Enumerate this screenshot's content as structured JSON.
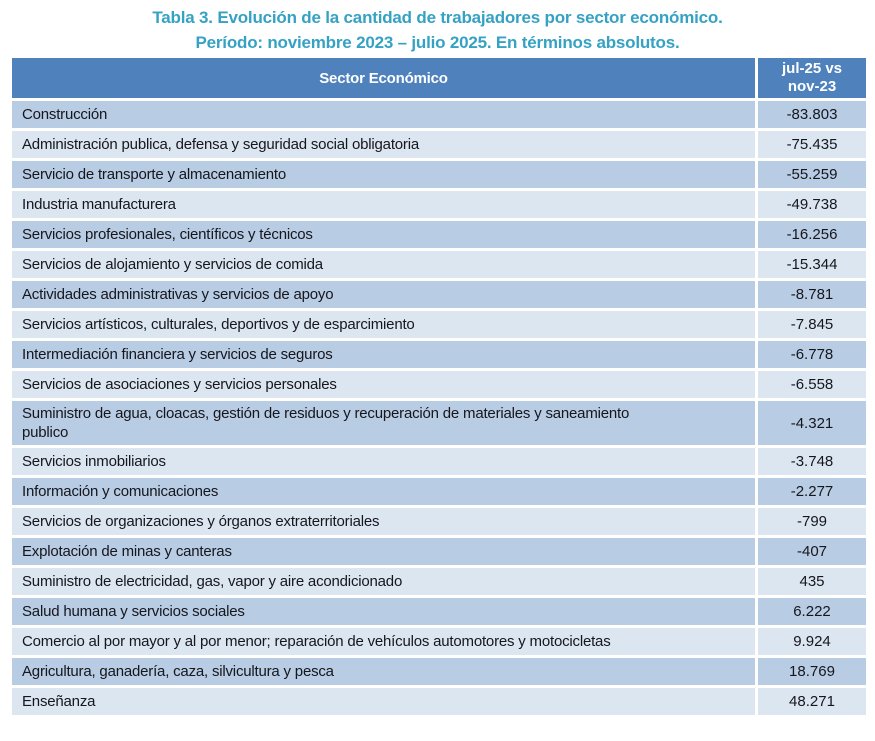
{
  "title": {
    "line1": "Tabla 3. Evolución de la cantidad de trabajadores por sector económico.",
    "line2": "Período: noviembre 2023 – julio 2025. En términos absolutos."
  },
  "colors": {
    "title_color": "#35a2c4",
    "header_bg": "#4f81bd",
    "header_text": "#ffffff",
    "row_dark": "#b8cce4",
    "row_light": "#dce6f1",
    "row_text": "#16161d"
  },
  "table": {
    "header": {
      "sector": "Sector Económico",
      "value_line1": "jul-25 vs",
      "value_line2": "nov-23"
    },
    "rows": [
      {
        "sector": "Construcción",
        "value": "-83.803"
      },
      {
        "sector": "Administración publica, defensa y seguridad social obligatoria",
        "value": "-75.435"
      },
      {
        "sector": "Servicio de transporte y almacenamiento",
        "value": "-55.259"
      },
      {
        "sector": "Industria manufacturera",
        "value": "-49.738"
      },
      {
        "sector": "Servicios profesionales, científicos y técnicos",
        "value": "-16.256"
      },
      {
        "sector": "Servicios de alojamiento y servicios de comida",
        "value": "-15.344"
      },
      {
        "sector": "Actividades administrativas y servicios de apoyo",
        "value": "-8.781"
      },
      {
        "sector": "Servicios artísticos, culturales, deportivos y de esparcimiento",
        "value": "-7.845"
      },
      {
        "sector": "Intermediación financiera y servicios de seguros",
        "value": "-6.778"
      },
      {
        "sector": "Servicios de asociaciones y servicios personales",
        "value": "-6.558"
      },
      {
        "sector": "Suministro de agua, cloacas, gestión de residuos y recuperación de materiales y saneamiento publico",
        "value": "-4.321"
      },
      {
        "sector": "Servicios inmobiliarios",
        "value": "-3.748"
      },
      {
        "sector": "Información y comunicaciones",
        "value": "-2.277"
      },
      {
        "sector": "Servicios de organizaciones y órganos extraterritoriales",
        "value": "-799"
      },
      {
        "sector": "Explotación de minas y canteras",
        "value": "-407"
      },
      {
        "sector": "Suministro de electricidad, gas, vapor y aire acondicionado",
        "value": "435"
      },
      {
        "sector": "Salud humana y servicios sociales",
        "value": "6.222"
      },
      {
        "sector": "Comercio al por mayor y al por menor; reparación de vehículos automotores y motocicletas",
        "value": "9.924"
      },
      {
        "sector": "Agricultura, ganadería, caza, silvicultura y pesca",
        "value": "18.769"
      },
      {
        "sector": "Enseñanza",
        "value": "48.271"
      }
    ]
  },
  "chart_data": {
    "type": "table",
    "title": "Tabla 3. Evolución de la cantidad de trabajadores por sector económico. Período: noviembre 2023 – julio 2025. En términos absolutos.",
    "columns": [
      "Sector Económico",
      "jul-25 vs nov-23"
    ],
    "categories": [
      "Construcción",
      "Administración publica, defensa y seguridad social obligatoria",
      "Servicio de transporte y almacenamiento",
      "Industria manufacturera",
      "Servicios profesionales, científicos y técnicos",
      "Servicios de alojamiento y servicios de comida",
      "Actividades administrativas y servicios de apoyo",
      "Servicios artísticos, culturales, deportivos y de esparcimiento",
      "Intermediación financiera y servicios de seguros",
      "Servicios de asociaciones y servicios personales",
      "Suministro de agua, cloacas, gestión de residuos y recuperación de materiales y saneamiento publico",
      "Servicios inmobiliarios",
      "Información y comunicaciones",
      "Servicios de organizaciones y órganos extraterritoriales",
      "Explotación de minas y canteras",
      "Suministro de electricidad, gas, vapor y aire acondicionado",
      "Salud humana y servicios sociales",
      "Comercio al por mayor y al por menor; reparación de vehículos automotores y motocicletas",
      "Agricultura, ganadería, caza, silvicultura y pesca",
      "Enseñanza"
    ],
    "values": [
      -83803,
      -75435,
      -55259,
      -49738,
      -16256,
      -15344,
      -8781,
      -7845,
      -6778,
      -6558,
      -4321,
      -3748,
      -2277,
      -799,
      -407,
      435,
      6222,
      9924,
      18769,
      48271
    ]
  }
}
